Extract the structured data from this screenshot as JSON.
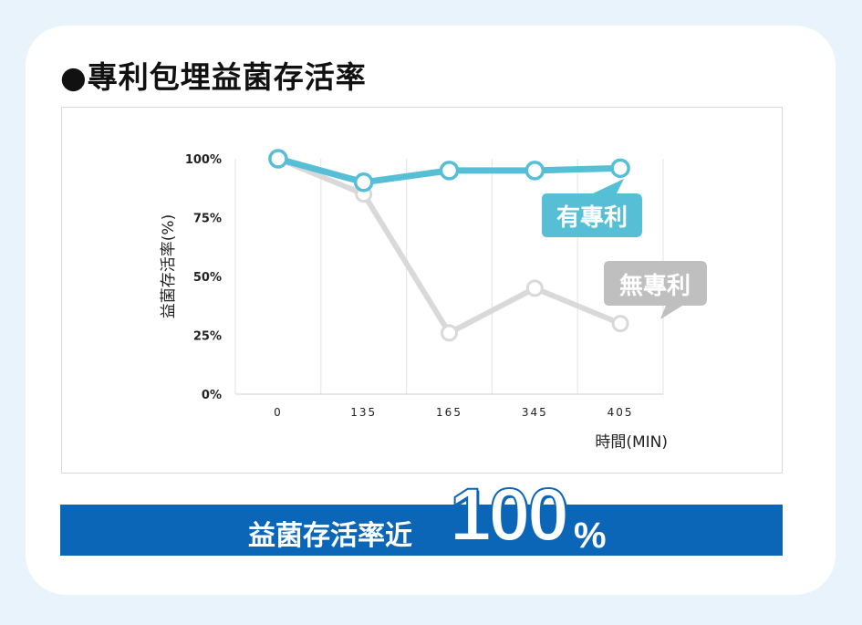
{
  "page": {
    "title": "●專利包埋益菌存活率",
    "banner": {
      "text": "益菌存活率近",
      "big_number": "100",
      "unit": "%"
    }
  },
  "chart_data": {
    "type": "line",
    "title": "",
    "xlabel": "時間(MIN)",
    "ylabel": "益菌存活率(%)",
    "categories": [
      "0",
      "135",
      "165",
      "345",
      "405"
    ],
    "ylim": [
      0,
      100
    ],
    "yticks": [
      "0%",
      "25%",
      "50%",
      "75%",
      "100%"
    ],
    "grid": "vertical",
    "series": [
      {
        "name": "有專利",
        "values": [
          100,
          90,
          95,
          95,
          96
        ],
        "color": "#56bfd6"
      },
      {
        "name": "無專利",
        "values": [
          100,
          85,
          26,
          45,
          30
        ],
        "color": "#d9d9d9"
      }
    ]
  },
  "colors": {
    "background": "#e8f3fb",
    "banner": "#0c66b7",
    "label_with_patent": "#56bfd6",
    "label_without_patent": "#bfbfbf"
  }
}
